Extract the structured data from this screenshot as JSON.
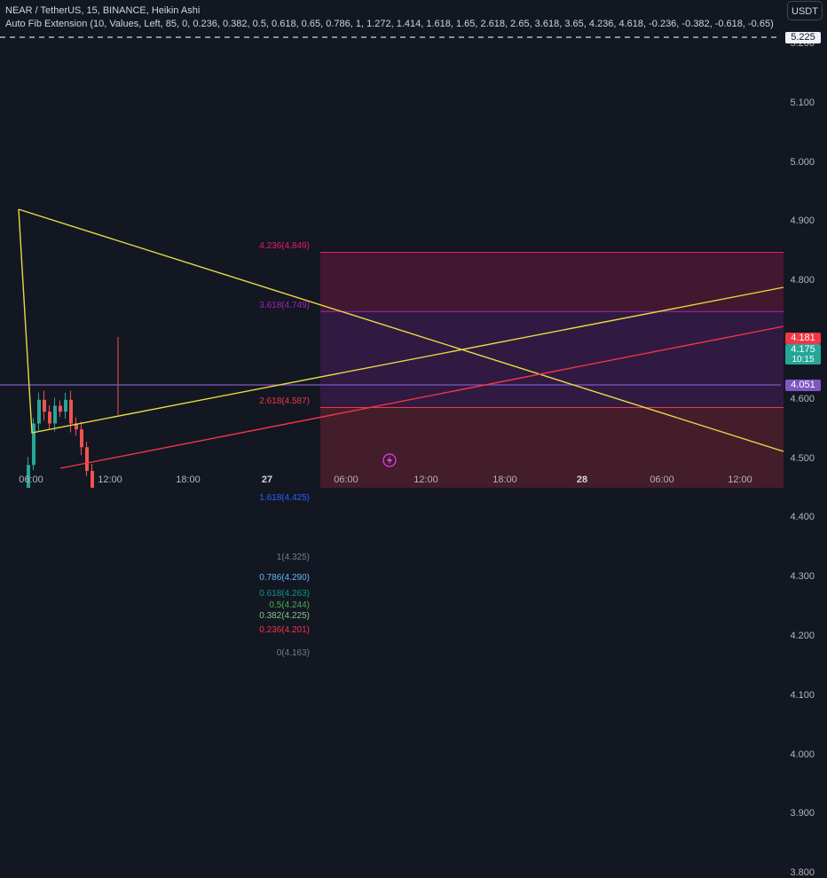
{
  "header": {
    "title": "NEAR / TetherUS, 15, BINANCE, Heikin Ashi",
    "indicator": "Auto Fib Extension (10, Values, Left, 85, 0, 0.236, 0.382, 0.5, 0.618, 0.65, 0.786, 1, 1.272, 1.414, 1.618, 1.65, 2.618, 2.65, 3.618, 3.65, 4.236, 4.618, -0.236, -0.382, -0.618, -0.65)"
  },
  "currency_button": "USDT",
  "price_axis": [
    "5.200",
    "5.100",
    "5.000",
    "4.900",
    "4.800",
    "4.700",
    "4.600",
    "4.500",
    "4.400",
    "4.300",
    "4.200",
    "4.100",
    "4.000",
    "3.900",
    "3.800"
  ],
  "time_axis": [
    "06:00",
    "12:00",
    "18:00",
    "27",
    "06:00",
    "12:00",
    "18:00",
    "28",
    "06:00",
    "12:00"
  ],
  "price_labels": {
    "alert": "5.225",
    "last": "4.181",
    "current": "4.175",
    "countdown": "10:15",
    "line": "4.051"
  },
  "fib_levels": [
    {
      "label": "4.236(4.849)",
      "color": "#e91e63"
    },
    {
      "label": "3.618(4.749)",
      "color": "#9c27b0"
    },
    {
      "label": "2.618(4.587)",
      "color": "#f23645"
    },
    {
      "label": "1.618(4.425)",
      "color": "#2962ff"
    },
    {
      "label": "1(4.325)",
      "color": "#787b86"
    },
    {
      "label": "0.786(4.290)",
      "color": "#64b5f6"
    },
    {
      "label": "0.618(4.263)",
      "color": "#089981"
    },
    {
      "label": "0.5(4.244)",
      "color": "#4caf50"
    },
    {
      "label": "0.382(4.225)",
      "color": "#81c784"
    },
    {
      "label": "0.236(4.201)",
      "color": "#f23645"
    },
    {
      "label": "0(4.163)",
      "color": "#787b86"
    }
  ],
  "colors": {
    "up": "#26a69a",
    "down": "#ef5350",
    "trendline": "#e8d845",
    "red_line": "#f23645",
    "purple_line": "#7e57c2"
  }
}
